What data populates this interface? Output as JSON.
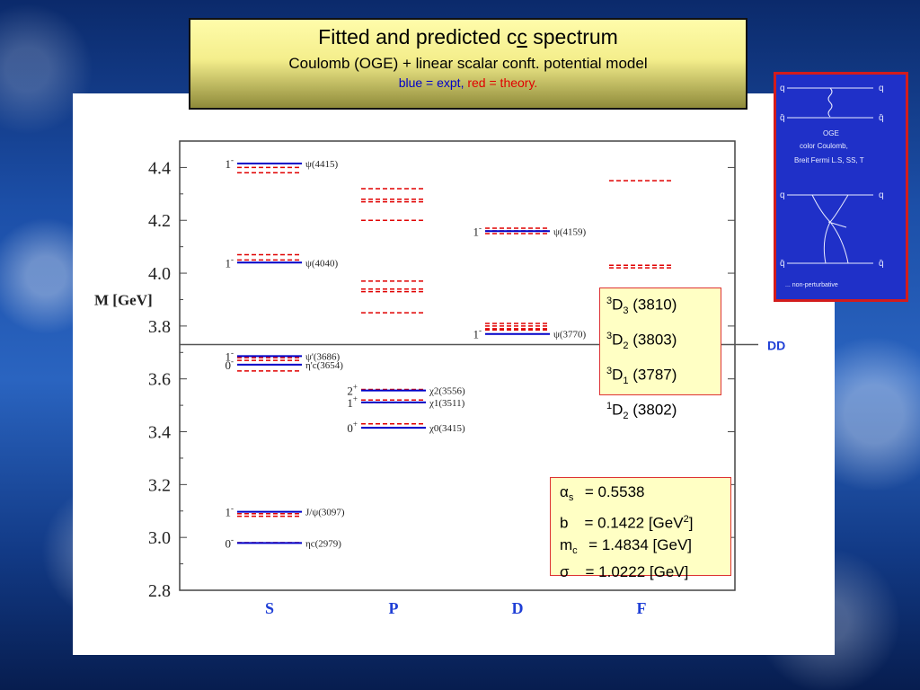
{
  "title": {
    "main_prefix": "Fitted and predicted c",
    "main_underlined": "c",
    "main_suffix": " spectrum",
    "subtitle": "Coulomb (OGE) + linear scalar conft. potential model",
    "legend_blue": "blue = expt,",
    "legend_red": "red = theory."
  },
  "colors": {
    "expt": "#0000c8",
    "theory": "#e00000",
    "threshold": "#555555"
  },
  "chart_data": {
    "type": "scatter",
    "ylabel": "M [GeV]",
    "ylim": [
      2.8,
      4.5
    ],
    "yticks": [
      "2.8",
      "3.0",
      "3.2",
      "3.4",
      "3.6",
      "3.8",
      "4.0",
      "4.2",
      "4.4"
    ],
    "categories": [
      "S",
      "P",
      "D",
      "F"
    ],
    "threshold": {
      "label": "DD",
      "value": 3.73
    },
    "experiment": [
      {
        "col": "S",
        "value": 4.415,
        "jp": "1",
        "par": "-",
        "label": "ψ(4415)"
      },
      {
        "col": "S",
        "value": 4.04,
        "jp": "1",
        "par": "-",
        "label": "ψ(4040)"
      },
      {
        "col": "S",
        "value": 3.686,
        "jp": "1",
        "par": "-",
        "label": "ψ'(3686)"
      },
      {
        "col": "S",
        "value": 3.654,
        "jp": "0",
        "par": "-",
        "label": "η'c(3654)"
      },
      {
        "col": "S",
        "value": 3.097,
        "jp": "1",
        "par": "-",
        "label": "J/ψ(3097)"
      },
      {
        "col": "S",
        "value": 2.979,
        "jp": "0",
        "par": "-",
        "label": "ηc(2979)"
      },
      {
        "col": "P",
        "value": 3.556,
        "jp": "2",
        "par": "+",
        "label": "χ2(3556)"
      },
      {
        "col": "P",
        "value": 3.511,
        "jp": "1",
        "par": "+",
        "label": "χ1(3511)"
      },
      {
        "col": "P",
        "value": 3.415,
        "jp": "0",
        "par": "+",
        "label": "χ0(3415)"
      },
      {
        "col": "D",
        "value": 4.159,
        "jp": "1",
        "par": "-",
        "label": "ψ(4159)"
      },
      {
        "col": "D",
        "value": 3.77,
        "jp": "1",
        "par": "-",
        "label": "ψ(3770)"
      }
    ],
    "theory": [
      {
        "col": "S",
        "values": [
          4.4,
          4.38,
          4.07,
          4.05,
          3.68,
          3.67,
          3.63,
          3.09,
          3.08,
          2.98
        ]
      },
      {
        "col": "P",
        "values": [
          4.32,
          4.28,
          4.27,
          4.2,
          3.97,
          3.94,
          3.93,
          3.85,
          3.56,
          3.52,
          3.51,
          3.43
        ]
      },
      {
        "col": "D",
        "values": [
          4.17,
          4.16,
          4.15,
          3.81,
          3.8,
          3.79,
          3.785
        ]
      },
      {
        "col": "F",
        "values": [
          4.35,
          4.03,
          4.02
        ]
      }
    ],
    "d_states": [
      {
        "spin": "3",
        "L": "D",
        "sub": "3",
        "mass": "(3810)"
      },
      {
        "spin": "3",
        "L": "D",
        "sub": "2",
        "mass": "(3803)"
      },
      {
        "spin": "3",
        "L": "D",
        "sub": "1",
        "mass": "(3787)"
      },
      {
        "spin": "1",
        "L": "D",
        "sub": "2",
        "mass": "(3802)"
      }
    ],
    "params": [
      {
        "sym": "α",
        "sub": "s",
        "rest": "= 0.5538"
      },
      {
        "sym": "b",
        "sub": "",
        "rest": "= 0.1422 [GeV",
        "sup": "2",
        "after": "]"
      },
      {
        "sym": "m",
        "sub": "c",
        "rest": "= 1.4834 [GeV]"
      },
      {
        "sym": "σ",
        "sub": "",
        "rest": "= 1.0222 [GeV]"
      }
    ]
  },
  "sketch": {
    "lines": [
      "OGE",
      "color Coulomb,",
      "Breit Fermi  L.S, SS, T",
      "... non-perturbative"
    ],
    "quark": "q",
    "antiquark": "q̄"
  }
}
